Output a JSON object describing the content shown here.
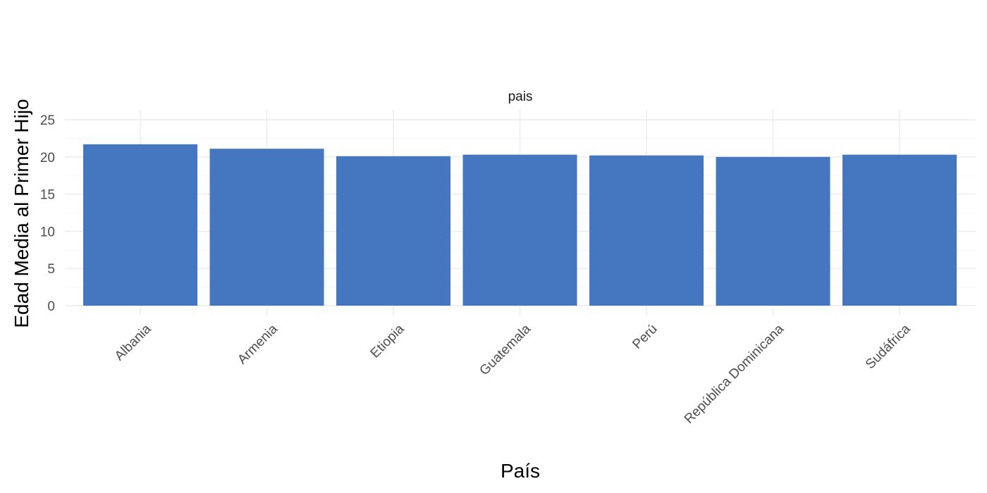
{
  "chart_data": {
    "type": "bar",
    "strip_label": "pais",
    "xlabel": "País",
    "ylabel": "Edad Media al Primer Hijo",
    "categories": [
      "Albania",
      "Armenia",
      "Etiopia",
      "Guatemala",
      "Perú",
      "República Dominicana",
      "Sudáfrica"
    ],
    "values": [
      21.7,
      21.1,
      20.1,
      20.3,
      20.2,
      20.0,
      20.3
    ],
    "ylim": [
      0,
      26
    ],
    "yticks": [
      0,
      5,
      10,
      15,
      20,
      25
    ],
    "grid": true,
    "bar_color": "#4477BF"
  }
}
